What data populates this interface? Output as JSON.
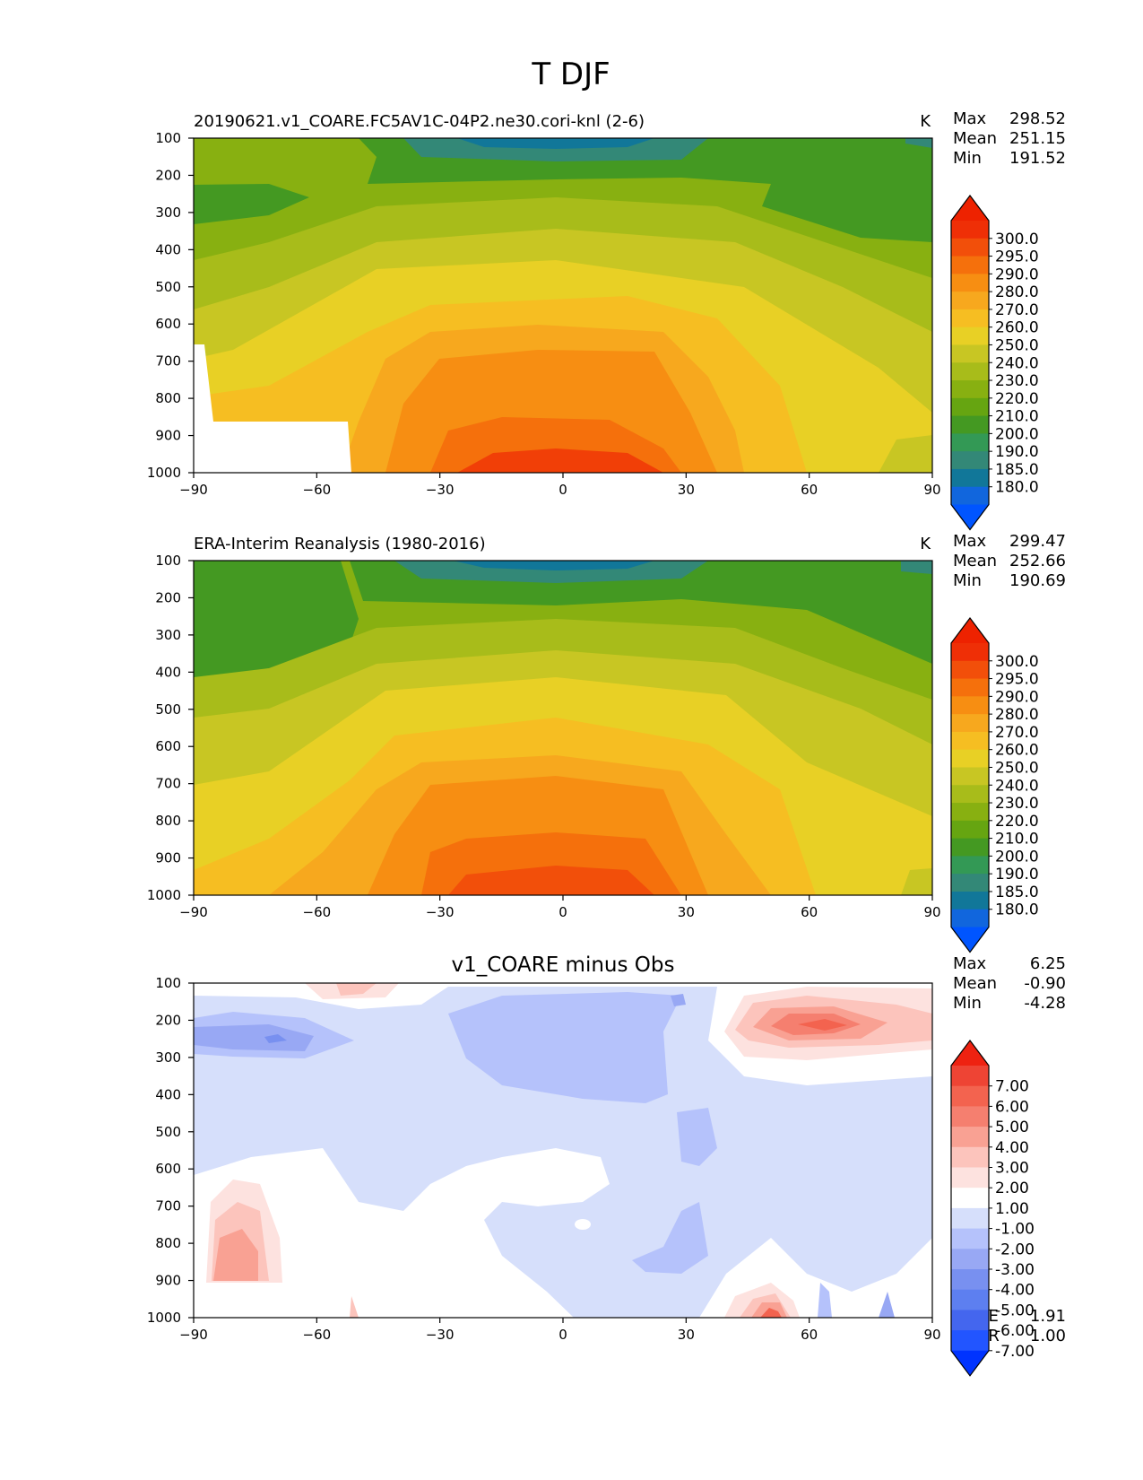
{
  "figure": {
    "title": "T DJF"
  },
  "colors": {
    "temperature": [
      "#0055ff",
      "#1166dd",
      "#117799",
      "#338877",
      "#339955",
      "#449922",
      "#66a511",
      "#88b011",
      "#a8bc1a",
      "#c8c623",
      "#e8d025",
      "#f6be22",
      "#f7a81e",
      "#f78e12",
      "#f5700c",
      "#f24f0a",
      "#ef2f06",
      "#ee2200"
    ],
    "difference": [
      "#0033ff",
      "#2255ff",
      "#4466ee",
      "#5d7ff0",
      "#7890f0",
      "#98a8f4",
      "#b5c2fb",
      "#d6dffb",
      "#ffffff",
      "#fde2df",
      "#fcc4bc",
      "#f9a193",
      "#f57f6f",
      "#f3634f",
      "#ee4434",
      "#ee2211"
    ]
  },
  "chart_data": [
    {
      "type": "contour",
      "id": "test",
      "title_left": "20190621.v1_COARE.FC5AV1C-04P2.ne30.cori-knl (2-6)",
      "units": "K",
      "stats": [
        {
          "label": "Max",
          "value": "298.52"
        },
        {
          "label": "Mean",
          "value": "251.15"
        },
        {
          "label": "Min",
          "value": "191.52"
        }
      ],
      "x_ticks": [
        "−90",
        "−60",
        "−30",
        "0",
        "30",
        "60",
        "90"
      ],
      "x_values": [
        -90,
        -60,
        -30,
        0,
        30,
        60,
        90
      ],
      "y_ticks": [
        "100",
        "200",
        "300",
        "400",
        "500",
        "600",
        "700",
        "800",
        "900",
        "1000"
      ],
      "y_values": [
        100,
        200,
        300,
        400,
        500,
        600,
        700,
        800,
        900,
        1000
      ],
      "xlim": [
        -90,
        90
      ],
      "ylim": [
        1000,
        100
      ],
      "colorbar": {
        "palette": "temperature",
        "labels": [
          "300.0",
          "295.0",
          "290.0",
          "280.0",
          "270.0",
          "260.0",
          "250.0",
          "240.0",
          "230.0",
          "220.0",
          "210.0",
          "200.0",
          "190.0",
          "185.0",
          "180.0"
        ]
      }
    },
    {
      "type": "contour",
      "id": "reference",
      "title_left": "ERA-Interim Reanalysis (1980-2016)",
      "units": "K",
      "stats": [
        {
          "label": "Max",
          "value": "299.47"
        },
        {
          "label": "Mean",
          "value": "252.66"
        },
        {
          "label": "Min",
          "value": "190.69"
        }
      ],
      "x_ticks": [
        "−90",
        "−60",
        "−30",
        "0",
        "30",
        "60",
        "90"
      ],
      "x_values": [
        -90,
        -60,
        -30,
        0,
        30,
        60,
        90
      ],
      "y_ticks": [
        "100",
        "200",
        "300",
        "400",
        "500",
        "600",
        "700",
        "800",
        "900",
        "1000"
      ],
      "y_values": [
        100,
        200,
        300,
        400,
        500,
        600,
        700,
        800,
        900,
        1000
      ],
      "xlim": [
        -90,
        90
      ],
      "ylim": [
        1000,
        100
      ],
      "colorbar": {
        "palette": "temperature",
        "labels": [
          "300.0",
          "295.0",
          "290.0",
          "280.0",
          "270.0",
          "260.0",
          "250.0",
          "240.0",
          "230.0",
          "220.0",
          "210.0",
          "200.0",
          "190.0",
          "185.0",
          "180.0"
        ]
      }
    },
    {
      "type": "contour",
      "id": "difference",
      "title_center": "v1_COARE minus Obs",
      "stats": [
        {
          "label": "Max",
          "value": "6.25"
        },
        {
          "label": "Mean",
          "value": "-0.90"
        },
        {
          "label": "Min",
          "value": "-4.28"
        }
      ],
      "extra_stats": [
        {
          "label": "RMSE",
          "value": "1.91"
        },
        {
          "label": "CORR",
          "value": "1.00"
        }
      ],
      "x_ticks": [
        "−90",
        "−60",
        "−30",
        "0",
        "30",
        "60",
        "90"
      ],
      "x_values": [
        -90,
        -60,
        -30,
        0,
        30,
        60,
        90
      ],
      "y_ticks": [
        "100",
        "200",
        "300",
        "400",
        "500",
        "600",
        "700",
        "800",
        "900",
        "1000"
      ],
      "y_values": [
        100,
        200,
        300,
        400,
        500,
        600,
        700,
        800,
        900,
        1000
      ],
      "xlim": [
        -90,
        90
      ],
      "ylim": [
        1000,
        100
      ],
      "colorbar": {
        "palette": "difference",
        "labels": [
          "7.00",
          "6.00",
          "5.00",
          "4.00",
          "3.00",
          "2.00",
          "1.00",
          "-1.00",
          "-2.00",
          "-3.00",
          "-4.00",
          "-5.00",
          "-6.00",
          "-7.00"
        ]
      }
    }
  ]
}
